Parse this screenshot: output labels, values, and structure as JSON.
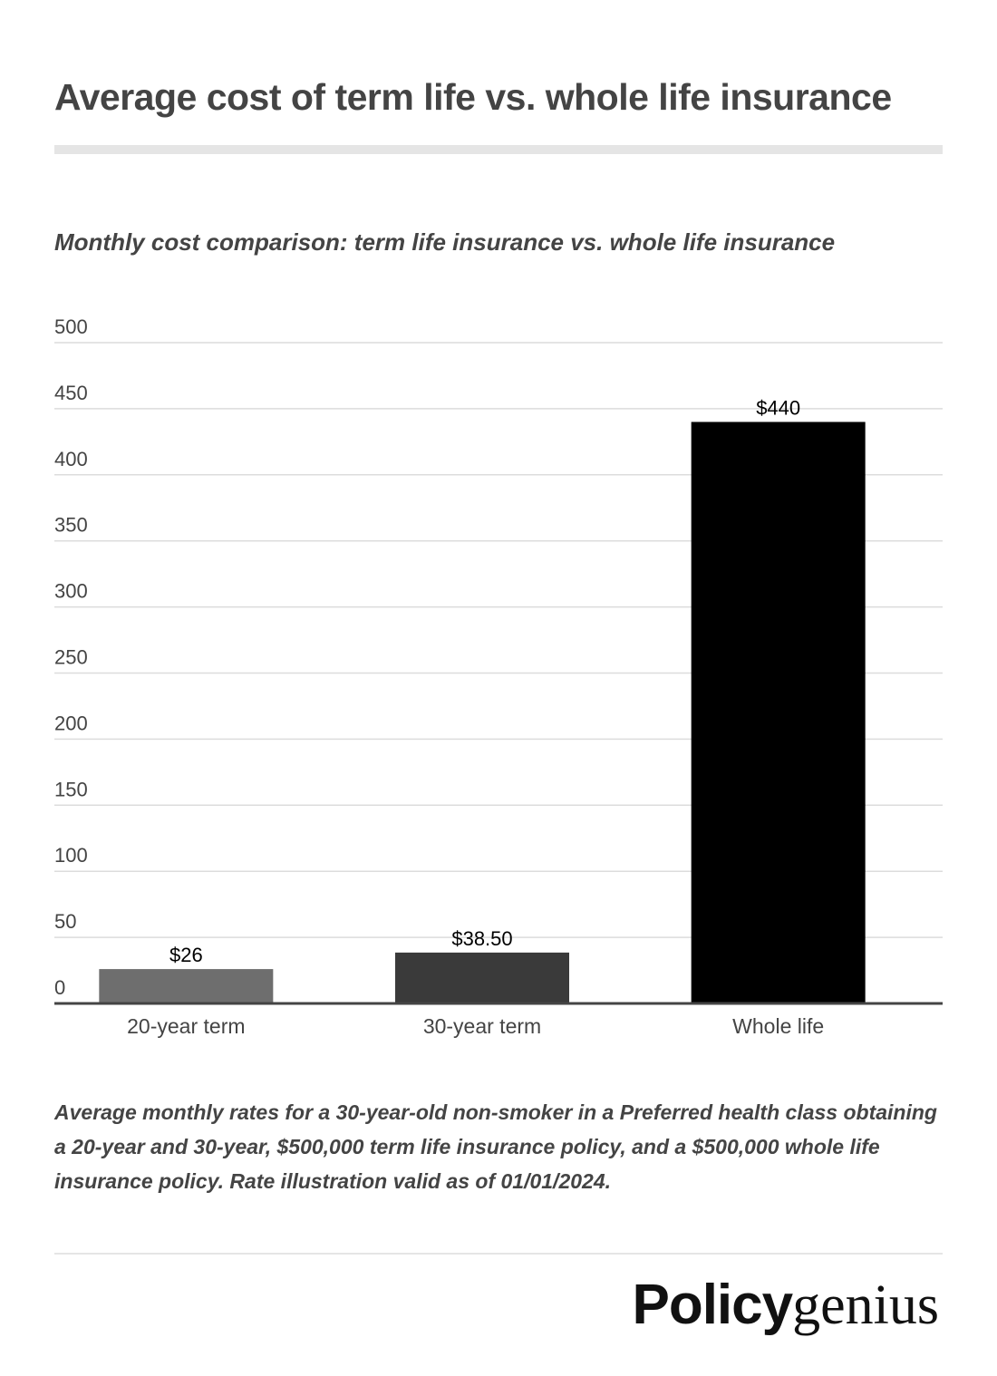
{
  "chart_data": {
    "type": "bar",
    "title": "Average cost of term life vs. whole life insurance",
    "subtitle": "Monthly cost comparison: term life insurance vs. whole life insurance",
    "categories": [
      "20-year term",
      "30-year term",
      "Whole life"
    ],
    "values": [
      26,
      38.5,
      440
    ],
    "value_labels": [
      "$26",
      "$38.50",
      "$440"
    ],
    "colors": [
      "#6e6e6e",
      "#3a3a3a",
      "#000000"
    ],
    "ylim": [
      0,
      500
    ],
    "yticks": [
      0,
      50,
      100,
      150,
      200,
      250,
      300,
      350,
      400,
      450,
      500
    ],
    "grid": true,
    "caption": "Average monthly rates for a 30-year-old non-smoker in a Preferred health class obtaining a 20-year and 30-year, $500,000 term life insurance policy, and a $500,000 whole life insurance policy. Rate illustration valid as of 01/01/2024.",
    "logo": [
      "Policy",
      "genius"
    ]
  }
}
